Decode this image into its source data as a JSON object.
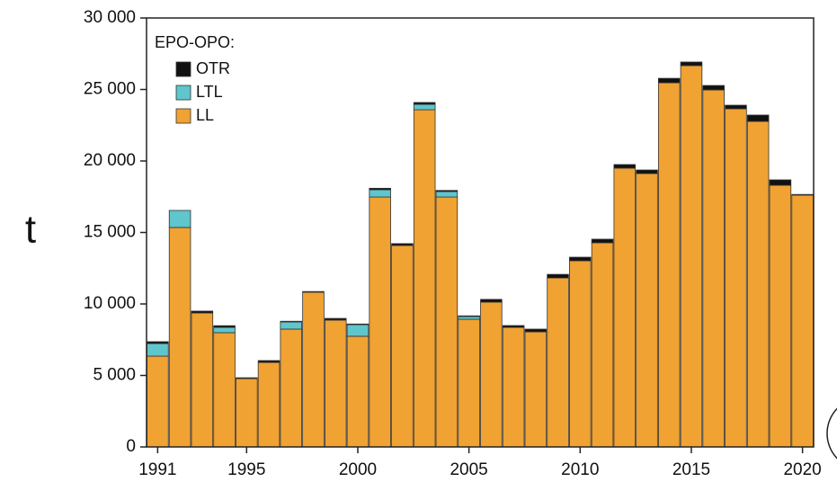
{
  "chart_data": {
    "type": "stacked-bar",
    "y_label": "t",
    "legend_title": "EPO-OPO:",
    "legend_position": "upper left",
    "x": [
      1991,
      1992,
      1993,
      1994,
      1995,
      1996,
      1997,
      1998,
      1999,
      2000,
      2001,
      2002,
      2003,
      2004,
      2005,
      2006,
      2007,
      2008,
      2009,
      2010,
      2011,
      2012,
      2013,
      2014,
      2015,
      2016,
      2017,
      2018,
      2019,
      2020
    ],
    "xlim": [
      1990.5,
      2020.5
    ],
    "xticks": [
      1991,
      1995,
      2000,
      2005,
      2010,
      2015,
      2020
    ],
    "ylim": [
      0,
      30000
    ],
    "yticks": [
      0,
      {
        "value": 5000,
        "label": "5 000"
      },
      {
        "value": 10000,
        "label": "10 000"
      },
      {
        "value": 15000,
        "label": "15 000"
      },
      {
        "value": 20000,
        "label": "20 000"
      },
      {
        "value": 25000,
        "label": "25 000"
      },
      {
        "value": 30000,
        "label": "30 000"
      }
    ],
    "series": [
      {
        "name": "LL",
        "color": "#f0a232",
        "values": [
          6350,
          15350,
          9370,
          7990,
          4780,
          5910,
          8240,
          10820,
          8870,
          7740,
          17480,
          14090,
          23580,
          17480,
          8930,
          10130,
          8360,
          8050,
          11820,
          13020,
          14280,
          19500,
          19120,
          25470,
          26670,
          24970,
          23650,
          22770,
          18300,
          17610
        ]
      },
      {
        "name": "LTL",
        "color": "#5ec6cc",
        "values": [
          880,
          1190,
          0,
          370,
          0,
          0,
          500,
          0,
          0,
          810,
          510,
          0,
          380,
          380,
          190,
          0,
          0,
          0,
          0,
          0,
          0,
          0,
          0,
          0,
          0,
          0,
          0,
          0,
          0,
          0
        ]
      },
      {
        "name": "OTR",
        "color": "#111111",
        "values": [
          130,
          0,
          130,
          120,
          60,
          130,
          50,
          50,
          120,
          50,
          100,
          130,
          130,
          80,
          50,
          190,
          130,
          190,
          250,
          250,
          250,
          250,
          250,
          310,
          250,
          310,
          250,
          440,
          380,
          50
        ]
      }
    ]
  }
}
